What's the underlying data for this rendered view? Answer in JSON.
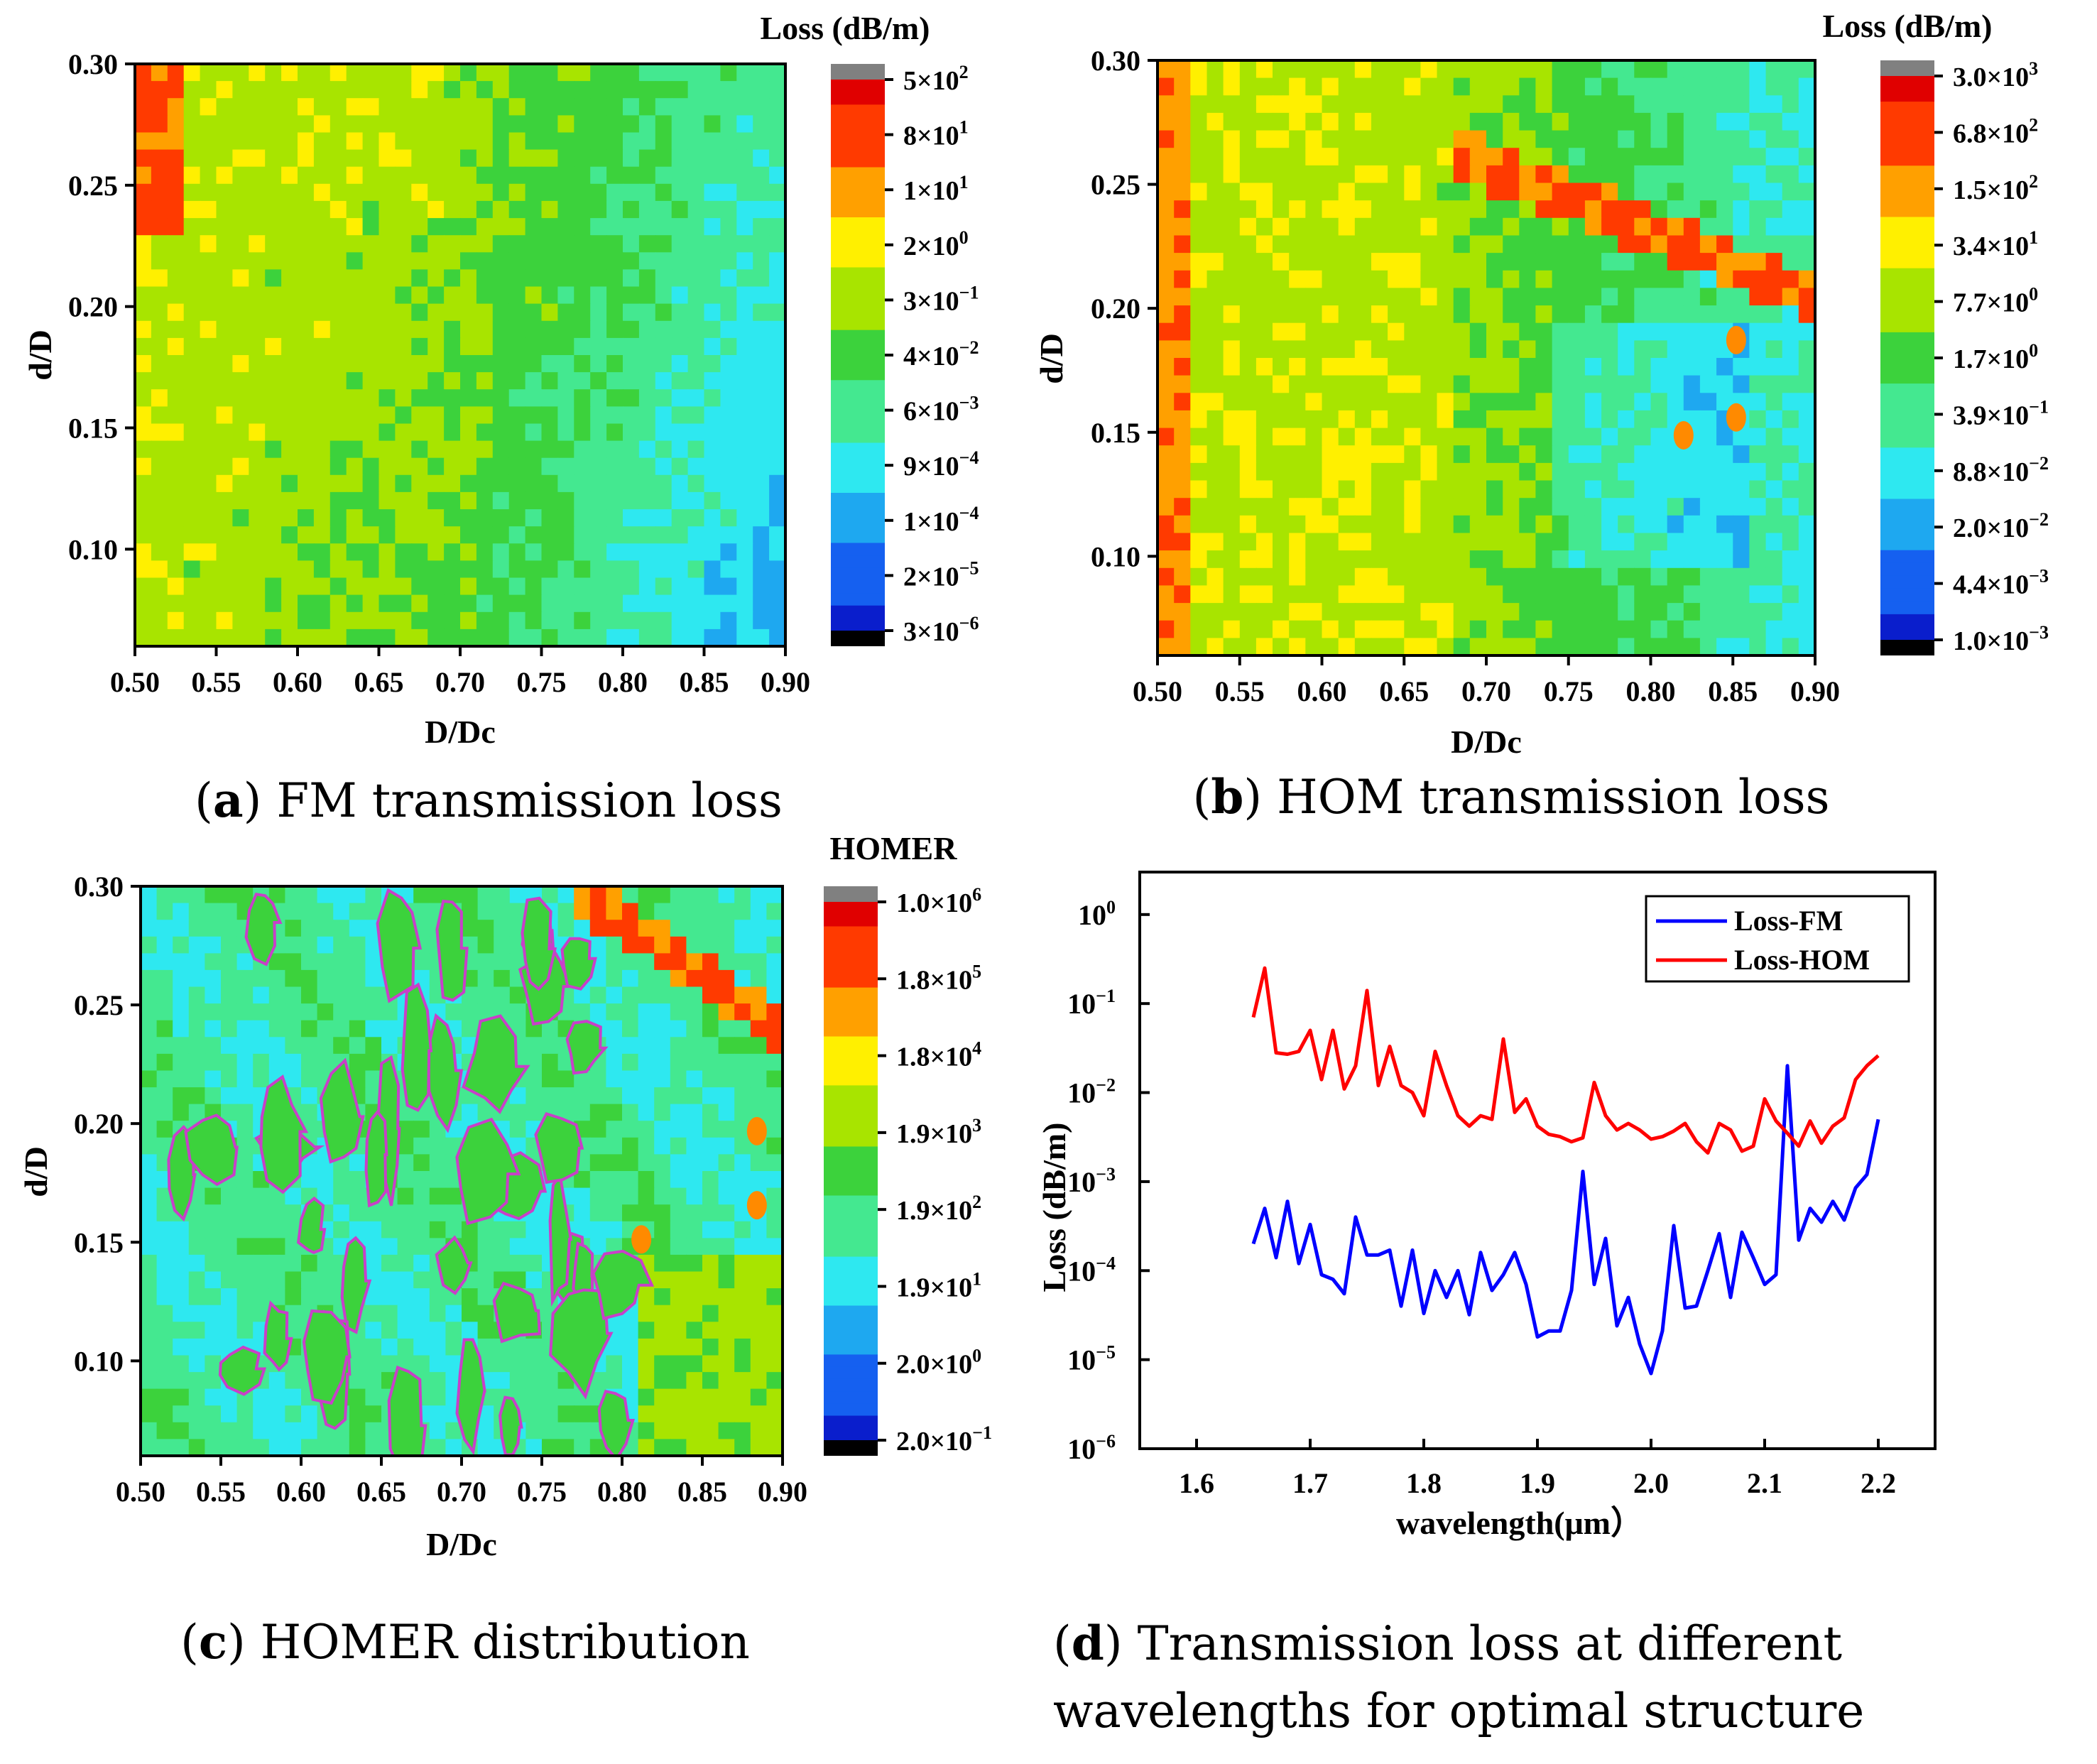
{
  "colors": {
    "spectrum": [
      "#000000",
      "#0a1ecc",
      "#1560f0",
      "#1ea8f0",
      "#2ee8f0",
      "#44e890",
      "#3cd23c",
      "#a8e400",
      "#fff000",
      "#ffa000",
      "#ff3a00",
      "#e00000",
      "#808080"
    ],
    "fm_line": "#0000ff",
    "hom_line": "#ff0000",
    "contour": "#c840c8"
  },
  "chart_data": [
    {
      "id": "a",
      "type": "heatmap",
      "title": "",
      "xlabel": "D/Dc",
      "ylabel": "d/D",
      "xlim": [
        0.5,
        0.9
      ],
      "ylim": [
        0.06,
        0.3
      ],
      "xticks": [
        "0.50",
        "0.55",
        "0.60",
        "0.65",
        "0.70",
        "0.75",
        "0.80",
        "0.85",
        "0.90"
      ],
      "yticks": [
        "0.30",
        "0.25",
        "0.20",
        "0.15",
        "0.10"
      ],
      "colorbar": {
        "title": "Loss (dB/m)",
        "ticks": [
          {
            "m": "5×10",
            "e": "2"
          },
          {
            "m": "8×10",
            "e": "1"
          },
          {
            "m": "1×10",
            "e": "1"
          },
          {
            "m": "2×10",
            "e": "0"
          },
          {
            "m": "3×10",
            "e": "−1"
          },
          {
            "m": "4×10",
            "e": "−2"
          },
          {
            "m": "6×10",
            "e": "−3"
          },
          {
            "m": "9×10",
            "e": "−4"
          },
          {
            "m": "1×10",
            "e": "−4"
          },
          {
            "m": "2×10",
            "e": "−5"
          },
          {
            "m": "3×10",
            "e": "−6"
          }
        ]
      },
      "caption_letter": "a",
      "caption_text": "FM transmission loss"
    },
    {
      "id": "b",
      "type": "heatmap",
      "title": "",
      "xlabel": "D/Dc",
      "ylabel": "d/D",
      "xlim": [
        0.5,
        0.9
      ],
      "ylim": [
        0.06,
        0.3
      ],
      "xticks": [
        "0.50",
        "0.55",
        "0.60",
        "0.65",
        "0.70",
        "0.75",
        "0.80",
        "0.85",
        "0.90"
      ],
      "yticks": [
        "0.30",
        "0.25",
        "0.20",
        "0.15",
        "0.10"
      ],
      "colorbar": {
        "title": "Loss (dB/m)",
        "ticks": [
          {
            "m": "3.0×10",
            "e": "3"
          },
          {
            "m": "6.8×10",
            "e": "2"
          },
          {
            "m": "1.5×10",
            "e": "2"
          },
          {
            "m": "3.4×10",
            "e": "1"
          },
          {
            "m": "7.7×10",
            "e": "0"
          },
          {
            "m": "1.7×10",
            "e": "0"
          },
          {
            "m": "3.9×10",
            "e": "−1"
          },
          {
            "m": "8.8×10",
            "e": "−2"
          },
          {
            "m": "2.0×10",
            "e": "−2"
          },
          {
            "m": "4.4×10",
            "e": "−3"
          },
          {
            "m": "1.0×10",
            "e": "−3"
          }
        ]
      },
      "caption_letter": "b",
      "caption_text": "HOM transmission loss"
    },
    {
      "id": "c",
      "type": "heatmap",
      "title": "",
      "xlabel": "D/Dc",
      "ylabel": "d/D",
      "xlim": [
        0.5,
        0.9
      ],
      "ylim": [
        0.06,
        0.3
      ],
      "xticks": [
        "0.50",
        "0.55",
        "0.60",
        "0.65",
        "0.70",
        "0.75",
        "0.80",
        "0.85",
        "0.90"
      ],
      "yticks": [
        "0.30",
        "0.25",
        "0.20",
        "0.15",
        "0.10"
      ],
      "colorbar": {
        "title": "HOMER",
        "ticks": [
          {
            "m": "1.0×10",
            "e": "6"
          },
          {
            "m": "1.8×10",
            "e": "5"
          },
          {
            "m": "1.8×10",
            "e": "4"
          },
          {
            "m": "1.9×10",
            "e": "3"
          },
          {
            "m": "1.9×10",
            "e": "2"
          },
          {
            "m": "1.9×10",
            "e": "1"
          },
          {
            "m": "2.0×10",
            "e": "0"
          },
          {
            "m": "2.0×10",
            "e": "−1"
          }
        ]
      },
      "caption_letter": "c",
      "caption_text": "HOMER distribution"
    },
    {
      "id": "d",
      "type": "line",
      "title": "",
      "xlabel": "wavelength(μm）",
      "ylabel": "Loss (dB/m)",
      "yscale": "log",
      "xlim": [
        1.55,
        2.25
      ],
      "ylim": [
        1e-06,
        3
      ],
      "xticks": [
        "1.6",
        "1.7",
        "1.8",
        "1.9",
        "2.0",
        "2.1",
        "2.2"
      ],
      "yticks": [
        {
          "m": "10",
          "e": "0"
        },
        {
          "m": "10",
          "e": "−1"
        },
        {
          "m": "10",
          "e": "−2"
        },
        {
          "m": "10",
          "e": "−3"
        },
        {
          "m": "10",
          "e": "−4"
        },
        {
          "m": "10",
          "e": "−5"
        },
        {
          "m": "10",
          "e": "−6"
        }
      ],
      "legend_position": "top-right",
      "x": [
        1.65,
        1.66,
        1.67,
        1.68,
        1.69,
        1.7,
        1.71,
        1.72,
        1.73,
        1.74,
        1.75,
        1.76,
        1.77,
        1.78,
        1.79,
        1.8,
        1.81,
        1.82,
        1.83,
        1.84,
        1.85,
        1.86,
        1.87,
        1.88,
        1.89,
        1.9,
        1.91,
        1.92,
        1.93,
        1.94,
        1.95,
        1.96,
        1.97,
        1.98,
        1.99,
        2.0,
        2.01,
        2.02,
        2.03,
        2.04,
        2.05,
        2.06,
        2.07,
        2.08,
        2.09,
        2.1,
        2.11,
        2.12,
        2.13,
        2.14,
        2.15,
        2.16,
        2.17,
        2.18,
        2.19,
        2.2
      ],
      "series": [
        {
          "name": "Loss-FM",
          "values": [
            0.0002,
            0.0005,
            0.00014,
            0.0006,
            0.00012,
            0.00033,
            9e-05,
            8e-05,
            5.5e-05,
            0.0004,
            0.00015,
            0.00015,
            0.00017,
            4e-05,
            0.00017,
            3.3e-05,
            0.0001,
            5e-05,
            0.0001,
            3.2e-05,
            0.00016,
            6e-05,
            9e-05,
            0.00016,
            7e-05,
            1.8e-05,
            2.1e-05,
            2.1e-05,
            6e-05,
            0.0013,
            7e-05,
            0.00023,
            2.4e-05,
            5e-05,
            1.5e-05,
            7e-06,
            2.1e-05,
            0.00032,
            3.8e-05,
            4e-05,
            0.0001,
            0.00026,
            5e-05,
            0.00027,
            0.00014,
            7e-05,
            9e-05,
            0.02,
            0.00022,
            0.0005,
            0.00035,
            0.0006,
            0.00037,
            0.00085,
            0.0012,
            0.005
          ]
        },
        {
          "name": "Loss-HOM",
          "values": [
            0.07,
            0.25,
            0.028,
            0.027,
            0.029,
            0.05,
            0.014,
            0.05,
            0.011,
            0.02,
            0.14,
            0.012,
            0.033,
            0.012,
            0.01,
            0.0055,
            0.029,
            0.012,
            0.0055,
            0.0042,
            0.0055,
            0.005,
            0.04,
            0.006,
            0.0085,
            0.0042,
            0.0034,
            0.0032,
            0.0028,
            0.0031,
            0.013,
            0.0055,
            0.0038,
            0.0045,
            0.0038,
            0.003,
            0.0032,
            0.0037,
            0.0045,
            0.0028,
            0.0021,
            0.0045,
            0.0038,
            0.0022,
            0.0025,
            0.0085,
            0.0048,
            0.0035,
            0.0025,
            0.0048,
            0.0027,
            0.0042,
            0.0052,
            0.014,
            0.02,
            0.026
          ]
        }
      ],
      "caption_letter": "d",
      "caption_line1": "Transmission loss at different",
      "caption_line2": "wavelengths for optimal structure"
    }
  ]
}
